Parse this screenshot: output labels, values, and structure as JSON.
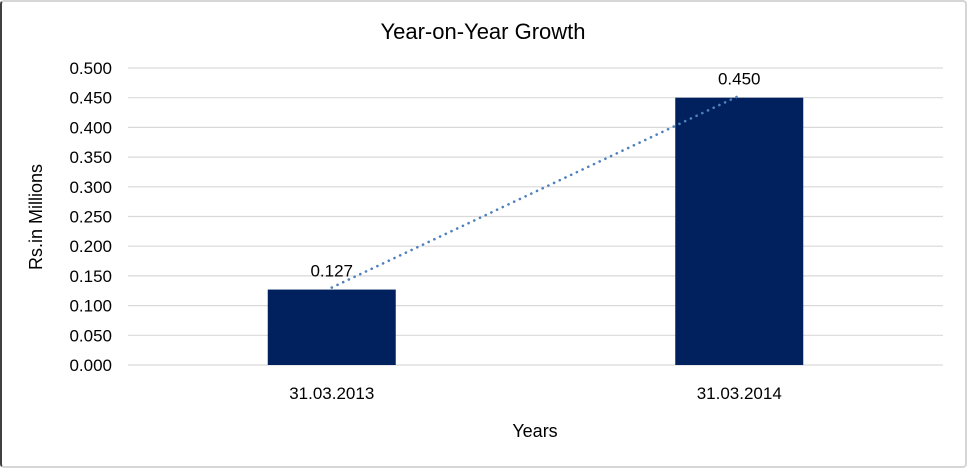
{
  "chart_data": {
    "type": "bar",
    "title": "Year-on-Year Growth",
    "categories": [
      "31.03.2013",
      "31.03.2014"
    ],
    "values": [
      0.127,
      0.45
    ],
    "data_labels": [
      "0.127",
      "0.450"
    ],
    "xlabel": "Years",
    "ylabel": "Rs.in Millions",
    "ylim": [
      0,
      0.5
    ],
    "ytick_step": 0.05,
    "ytick_labels": [
      "0.000",
      "0.050",
      "0.100",
      "0.150",
      "0.200",
      "0.250",
      "0.300",
      "0.350",
      "0.400",
      "0.450",
      "0.500"
    ],
    "grid": true,
    "legend": "none",
    "bar_color": "#00215E",
    "gridline_color": "#D9D9D9",
    "text_color": "#000000",
    "trendline": {
      "style": "dotted",
      "color": "#4F81BD",
      "from_index": 0,
      "to_index": 1
    }
  }
}
